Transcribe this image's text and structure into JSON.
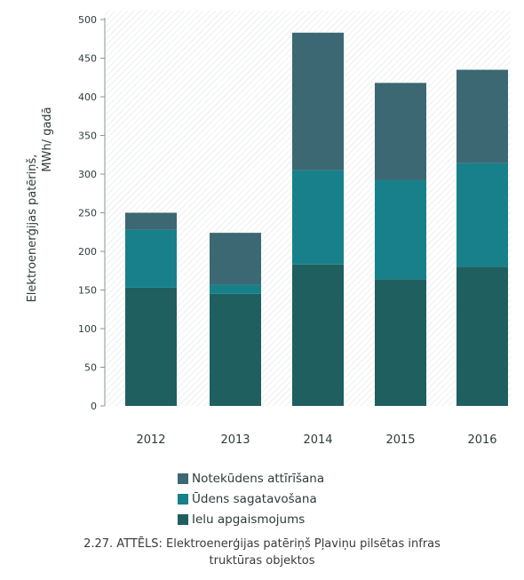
{
  "chart_data": {
    "type": "bar",
    "stacked": true,
    "categories": [
      "2012",
      "2013",
      "2014",
      "2015",
      "2016"
    ],
    "series": [
      {
        "name": "Ielu apgaismojums",
        "color": "#1f5f5f",
        "values": [
          153,
          145,
          183,
          164,
          180
        ]
      },
      {
        "name": "Ūdens sagatavošana",
        "color": "#17808a",
        "values": [
          75,
          12,
          122,
          128,
          134
        ]
      },
      {
        "name": "Notekūdens attīrīšana",
        "color": "#3b6872",
        "values": [
          22,
          67,
          178,
          126,
          121
        ]
      }
    ],
    "ylabel_line1": "Elektroenerģijas patēriņš,",
    "ylabel_line2": "MWh/ gadā",
    "ylim": [
      0,
      500
    ],
    "yticks": [
      "0",
      "50",
      "100",
      "150",
      "200",
      "250",
      "300",
      "350",
      "400",
      "450",
      "500"
    ],
    "ytick_values": [
      0,
      50,
      100,
      150,
      200,
      250,
      300,
      350,
      400,
      450,
      500
    ],
    "legend_placement": "bottom",
    "grid": false
  },
  "legend": {
    "items": [
      {
        "label": "Notekūdens attīrīšana",
        "color": "#3b6872"
      },
      {
        "label": "Ūdens sagatavošana",
        "color": "#17808a"
      },
      {
        "label": "Ielu apgaismojums",
        "color": "#1f5f5f"
      }
    ]
  },
  "caption": {
    "line1": "2.27. ATTĒLS: Elektroenerģijas patēriņš Pļaviņu pilsētas infras",
    "line2": "truktūras objektos"
  }
}
